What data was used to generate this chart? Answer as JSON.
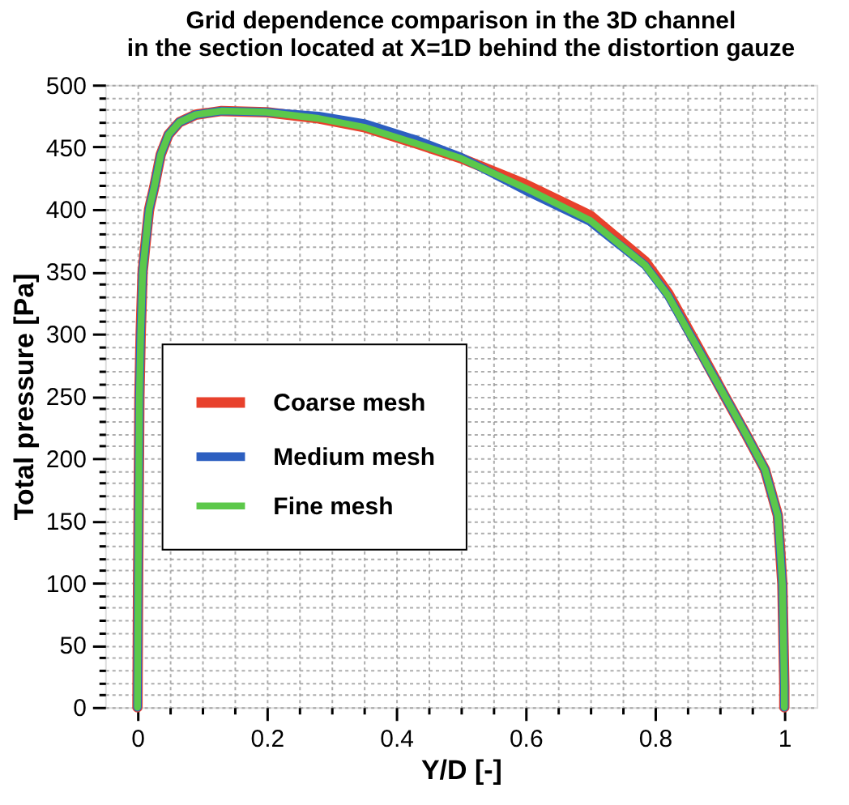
{
  "chart_data": {
    "type": "line",
    "title": "Grid dependence comparison in the 3D channel\nin the section located at X=1D behind the distortion gauze",
    "xlabel": "Y/D [-]",
    "ylabel": "Total pressure [Pa]",
    "x": [
      0,
      0.001,
      0.003,
      0.005,
      0.008,
      0.018,
      0.026,
      0.036,
      0.048,
      0.065,
      0.09,
      0.13,
      0.2,
      0.28,
      0.35,
      0.43,
      0.5,
      0.6,
      0.7,
      0.785,
      0.82,
      0.87,
      0.91,
      0.94,
      0.97,
      0.99,
      0.997,
      1.0,
      1.0
    ],
    "series": [
      {
        "name": "Coarse mesh",
        "color": "#e8412c",
        "values": [
          0,
          100,
          250,
          300,
          350,
          400,
          418,
          444,
          460,
          470,
          476,
          479,
          478,
          473,
          466,
          453,
          441,
          420,
          395,
          358,
          333,
          286,
          248,
          220,
          191,
          154,
          99,
          17,
          0
        ]
      },
      {
        "name": "Medium mesh",
        "color": "#2d5fc0",
        "values": [
          0,
          100,
          250,
          300,
          350,
          400,
          418,
          444,
          460,
          470,
          476,
          479,
          478,
          475,
          469,
          456,
          442,
          415,
          390,
          355,
          331,
          285,
          248,
          220,
          191,
          154,
          99,
          17,
          0
        ]
      },
      {
        "name": "Fine mesh",
        "color": "#5cc84a",
        "values": [
          0,
          100,
          250,
          300,
          350,
          400,
          418,
          444,
          460,
          470,
          476,
          479,
          478,
          473,
          466,
          453,
          441,
          417,
          391,
          355,
          331,
          285,
          248,
          220,
          191,
          154,
          99,
          17,
          0
        ]
      }
    ],
    "xlim": [
      -0.05,
      1.05
    ],
    "xticks": [
      0,
      {
        "value": 0.05,
        "label": null
      },
      {
        "value": 0.1,
        "label": null
      },
      {
        "value": 0.15,
        "label": null
      },
      0.2,
      {
        "value": 0.25,
        "label": null
      },
      {
        "value": 0.3,
        "label": null
      },
      {
        "value": 0.35,
        "label": null
      },
      0.4,
      {
        "value": 0.45,
        "label": null
      },
      {
        "value": 0.5,
        "label": null
      },
      {
        "value": 0.55,
        "label": null
      },
      0.6,
      {
        "value": 0.65,
        "label": null
      },
      {
        "value": 0.7,
        "label": null
      },
      {
        "value": 0.75,
        "label": null
      },
      0.8,
      {
        "value": 0.85,
        "label": null
      },
      {
        "value": 0.9,
        "label": null
      },
      {
        "value": 0.95,
        "label": null
      },
      1
    ],
    "ylim": [
      0,
      500
    ],
    "yticks": [
      0,
      {
        "value": 10,
        "label": null
      },
      {
        "value": 20,
        "label": null
      },
      {
        "value": 30,
        "label": null
      },
      {
        "value": 40,
        "label": null
      },
      50,
      {
        "value": 60,
        "label": null
      },
      {
        "value": 70,
        "label": null
      },
      {
        "value": 80,
        "label": null
      },
      {
        "value": 90,
        "label": null
      },
      100,
      {
        "value": 110,
        "label": null
      },
      {
        "value": 120,
        "label": null
      },
      {
        "value": 130,
        "label": null
      },
      {
        "value": 140,
        "label": null
      },
      150,
      {
        "value": 160,
        "label": null
      },
      {
        "value": 170,
        "label": null
      },
      {
        "value": 180,
        "label": null
      },
      {
        "value": 190,
        "label": null
      },
      200,
      {
        "value": 210,
        "label": null
      },
      {
        "value": 220,
        "label": null
      },
      {
        "value": 230,
        "label": null
      },
      {
        "value": 240,
        "label": null
      },
      250,
      {
        "value": 260,
        "label": null
      },
      {
        "value": 270,
        "label": null
      },
      {
        "value": 280,
        "label": null
      },
      {
        "value": 290,
        "label": null
      },
      300,
      {
        "value": 310,
        "label": null
      },
      {
        "value": 320,
        "label": null
      },
      {
        "value": 330,
        "label": null
      },
      {
        "value": 340,
        "label": null
      },
      350,
      {
        "value": 360,
        "label": null
      },
      {
        "value": 370,
        "label": null
      },
      {
        "value": 380,
        "label": null
      },
      {
        "value": 390,
        "label": null
      },
      400,
      {
        "value": 410,
        "label": null
      },
      {
        "value": 420,
        "label": null
      },
      {
        "value": 430,
        "label": null
      },
      {
        "value": 440,
        "label": null
      },
      450,
      {
        "value": 460,
        "label": null
      },
      {
        "value": 470,
        "label": null
      },
      {
        "value": 480,
        "label": null
      },
      {
        "value": 490,
        "label": null
      },
      500
    ],
    "grid": true,
    "legend": "left",
    "line_style": "solid",
    "marker": "none"
  }
}
